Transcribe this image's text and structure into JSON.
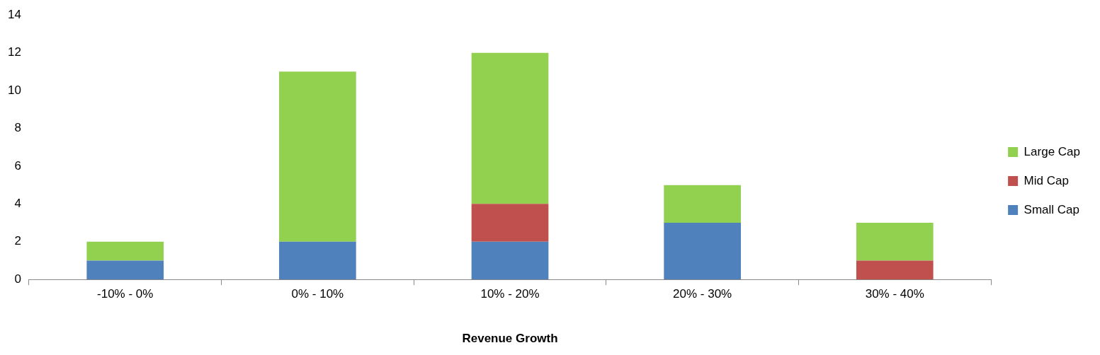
{
  "chart_data": {
    "type": "bar",
    "xlabel": "Revenue Growth",
    "categories": [
      "-10% - 0%",
      "0% - 10%",
      "10% - 20%",
      "20% - 30%",
      "30% - 40%"
    ],
    "stacked": true,
    "series": [
      {
        "name": "Small Cap",
        "color": "#4f81bd",
        "values": [
          1,
          2,
          2,
          3,
          0
        ]
      },
      {
        "name": "Mid Cap",
        "color": "#c0504d",
        "values": [
          0,
          0,
          2,
          0,
          1
        ]
      },
      {
        "name": "Large Cap",
        "color": "#92d050",
        "values": [
          1,
          9,
          8,
          2,
          2
        ]
      }
    ],
    "ylim": [
      0,
      14
    ],
    "yticks": [
      0,
      2,
      4,
      6,
      8,
      10,
      12,
      14
    ],
    "grid": false,
    "legend": "right"
  }
}
